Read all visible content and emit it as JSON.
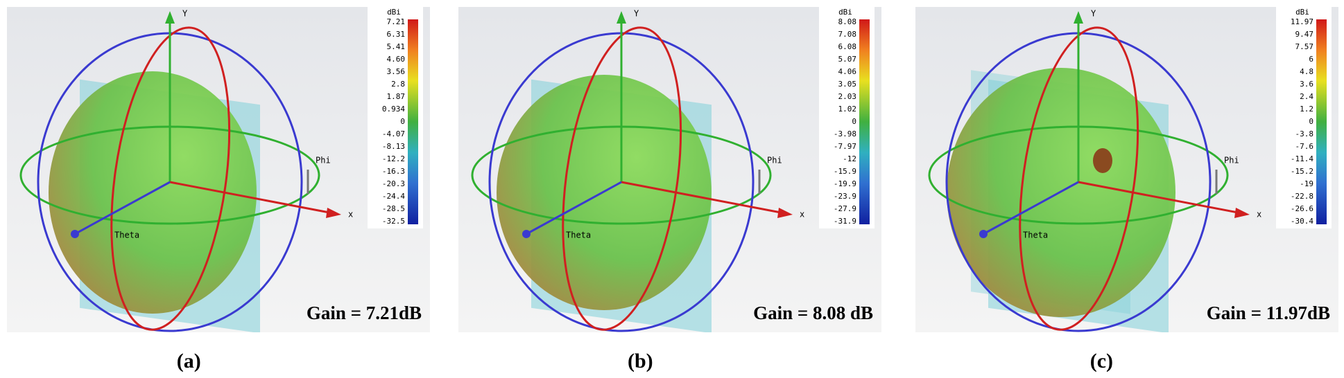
{
  "panels": [
    {
      "unit": "dBi",
      "colorbar_labels": [
        "7.21",
        "6.31",
        "5.41",
        "4.60",
        "3.56",
        "2.8",
        "1.87",
        "0.934",
        "0",
        "-4.07",
        "-8.13",
        "-12.2",
        "-16.3",
        "-20.3",
        "-24.4",
        "-28.5",
        "-32.5"
      ],
      "axis_labels": {
        "y": "Y",
        "x": "x",
        "phi": "Phi",
        "theta": "Theta"
      },
      "gain": "Gain = 7.21dB",
      "caption": "(a)"
    },
    {
      "unit": "dBi",
      "colorbar_labels": [
        "8.08",
        "7.08",
        "6.08",
        "5.07",
        "4.06",
        "3.05",
        "2.03",
        "1.02",
        "0",
        "-3.98",
        "-7.97",
        "-12",
        "-15.9",
        "-19.9",
        "-23.9",
        "-27.9",
        "-31.9"
      ],
      "axis_labels": {
        "y": "Y",
        "x": "x",
        "phi": "Phi",
        "theta": "Theta"
      },
      "gain": "Gain = 8.08 dB",
      "caption": "(b)"
    },
    {
      "unit": "dBi",
      "colorbar_labels": [
        "11.97",
        "9.47",
        "7.57",
        "6",
        "4.8",
        "3.6",
        "2.4",
        "1.2",
        "0",
        "-3.8",
        "-7.6",
        "-11.4",
        "-15.2",
        "-19",
        "-22.8",
        "-26.6",
        "-30.4"
      ],
      "axis_labels": {
        "y": "Y",
        "x": "x",
        "phi": "Phi",
        "theta": "Theta"
      },
      "gain": "Gain = 11.97dB",
      "caption": "(c)"
    }
  ]
}
